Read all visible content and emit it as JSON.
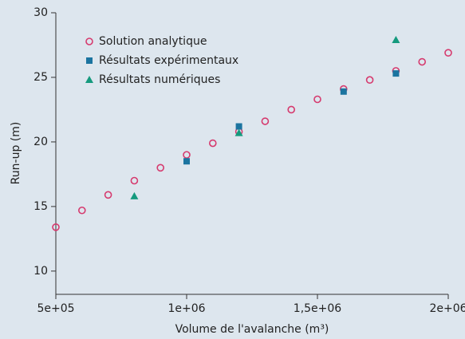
{
  "chart_data": {
    "type": "scatter",
    "xlabel": "Volume de l'avalanche (m³)",
    "ylabel": "Run-up (m)",
    "xlim": [
      500000,
      2000000
    ],
    "ylim": [
      8.2,
      30
    ],
    "xticks": [
      {
        "value": 500000,
        "label": "5e+05"
      },
      {
        "value": 1000000,
        "label": "1e+06"
      },
      {
        "value": 1500000,
        "label": "1,5e+06"
      },
      {
        "value": 2000000,
        "label": "2e+06"
      }
    ],
    "yticks": [
      10,
      15,
      20,
      25,
      30
    ],
    "legend": "upper left",
    "series": [
      {
        "name": "Solution analytique",
        "color": "#d63a6e",
        "marker": "circle",
        "x": [
          500000,
          600000,
          700000,
          800000,
          900000,
          1000000,
          1100000,
          1200000,
          1300000,
          1400000,
          1500000,
          1600000,
          1700000,
          1800000,
          1900000,
          2000000
        ],
        "values": [
          13.4,
          14.7,
          15.9,
          17.0,
          18.0,
          19.0,
          19.9,
          20.8,
          21.6,
          22.5,
          23.3,
          24.1,
          24.8,
          25.5,
          26.2,
          26.9
        ]
      },
      {
        "name": "Résultats expérimentaux",
        "color": "#1b74a0",
        "marker": "square",
        "x": [
          1000000,
          1200000,
          1600000,
          1800000
        ],
        "values": [
          18.5,
          21.2,
          23.9,
          25.3
        ]
      },
      {
        "name": "Résultats numériques",
        "color": "#159a7e",
        "marker": "triangle",
        "x": [
          800000,
          1200000,
          1800000
        ],
        "values": [
          15.8,
          20.7,
          27.9
        ]
      }
    ]
  }
}
